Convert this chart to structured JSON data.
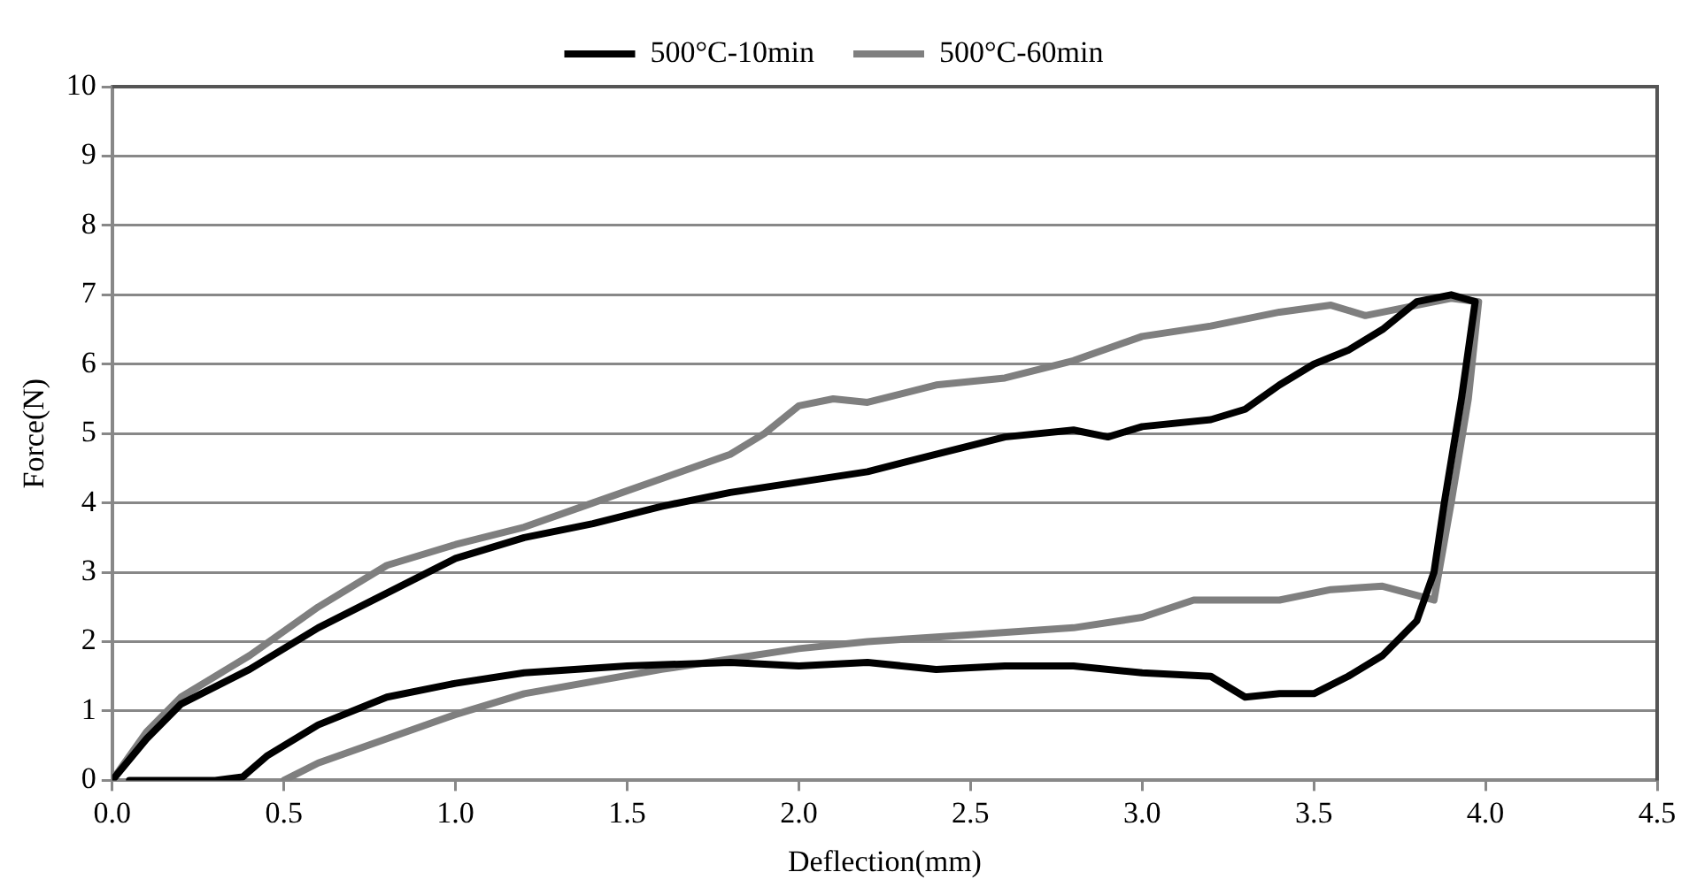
{
  "chart_data": {
    "type": "line",
    "xlabel": "Deflection(mm)",
    "ylabel": "Force(N)",
    "xlim": [
      0,
      4.5
    ],
    "xticks": [
      {
        "value": 0,
        "label": "0.0"
      },
      {
        "value": 0.5,
        "label": "0.5"
      },
      {
        "value": 1,
        "label": "1.0"
      },
      {
        "value": 1.5,
        "label": "1.5"
      },
      {
        "value": 2,
        "label": "2.0"
      },
      {
        "value": 2.5,
        "label": "2.5"
      },
      {
        "value": 3,
        "label": "3.0"
      },
      {
        "value": 3.5,
        "label": "3.5"
      },
      {
        "value": 4,
        "label": "4.0"
      },
      {
        "value": 4.5,
        "label": "4.5"
      }
    ],
    "ylim": [
      0,
      10
    ],
    "yticks": [
      0,
      1,
      2,
      3,
      4,
      5,
      6,
      7,
      8,
      9,
      10
    ],
    "grid": "y",
    "legend": "top",
    "marker": "none",
    "line_style": "solid",
    "series": [
      {
        "name": "500°C-10min",
        "color": "#000000",
        "x": [
          0,
          0.1,
          0.2,
          0.4,
          0.6,
          0.8,
          1.0,
          1.2,
          1.4,
          1.6,
          1.8,
          2.0,
          2.2,
          2.4,
          2.6,
          2.8,
          2.9,
          3.0,
          3.2,
          3.3,
          3.4,
          3.5,
          3.6,
          3.7,
          3.8,
          3.9,
          3.97,
          3.93,
          3.88,
          3.85,
          3.8,
          3.7,
          3.6,
          3.5,
          3.4,
          3.3,
          3.2,
          3.0,
          2.8,
          2.6,
          2.4,
          2.2,
          2.0,
          1.8,
          1.5,
          1.2,
          1.0,
          0.8,
          0.6,
          0.45,
          0.38,
          0.3,
          0.05
        ],
        "values": [
          0,
          0.6,
          1.1,
          1.6,
          2.2,
          2.7,
          3.2,
          3.5,
          3.7,
          3.95,
          4.15,
          4.3,
          4.45,
          4.7,
          4.95,
          5.05,
          4.95,
          5.1,
          5.2,
          5.35,
          5.7,
          6.0,
          6.2,
          6.5,
          6.9,
          7.0,
          6.9,
          5.5,
          4.0,
          3.0,
          2.3,
          1.8,
          1.5,
          1.25,
          1.25,
          1.2,
          1.5,
          1.55,
          1.65,
          1.65,
          1.6,
          1.7,
          1.65,
          1.7,
          1.65,
          1.55,
          1.4,
          1.2,
          0.8,
          0.35,
          0.05,
          0,
          0
        ]
      },
      {
        "name": "500°C-60min",
        "color": "#7f7f7f",
        "x": [
          0,
          0.1,
          0.2,
          0.4,
          0.6,
          0.8,
          1.0,
          1.2,
          1.4,
          1.6,
          1.8,
          1.9,
          2.0,
          2.1,
          2.2,
          2.4,
          2.6,
          2.8,
          3.0,
          3.2,
          3.4,
          3.55,
          3.65,
          3.8,
          3.9,
          3.98,
          3.95,
          3.9,
          3.85,
          3.7,
          3.55,
          3.4,
          3.3,
          3.15,
          3.0,
          2.8,
          2.5,
          2.2,
          2.0,
          1.6,
          1.2,
          1.0,
          0.8,
          0.6,
          0.5
        ],
        "values": [
          0,
          0.7,
          1.2,
          1.8,
          2.5,
          3.1,
          3.4,
          3.65,
          4.0,
          4.35,
          4.7,
          5.0,
          5.4,
          5.5,
          5.45,
          5.7,
          5.8,
          6.05,
          6.4,
          6.55,
          6.75,
          6.85,
          6.7,
          6.85,
          6.95,
          6.9,
          5.5,
          4.0,
          2.6,
          2.8,
          2.75,
          2.6,
          2.6,
          2.6,
          2.35,
          2.2,
          2.1,
          2.0,
          1.9,
          1.6,
          1.25,
          0.95,
          0.6,
          0.25,
          0
        ]
      }
    ]
  }
}
